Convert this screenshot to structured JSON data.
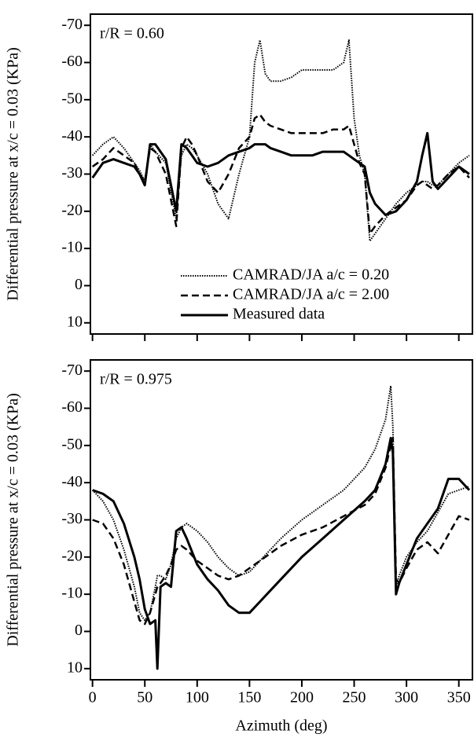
{
  "chart_data": [
    {
      "type": "line",
      "annotation": "r/R = 0.60",
      "ylabel": "Differential pressure at x/c = 0.03 (KPa)",
      "xlim": [
        -2,
        363
      ],
      "xticks": [
        0,
        50,
        100,
        150,
        200,
        250,
        300,
        350
      ],
      "ylim": [
        13,
        -73
      ],
      "yticks": [
        -70,
        -60,
        -50,
        -40,
        -30,
        -20,
        -10,
        0,
        10
      ],
      "legend": "bottom-center",
      "x": [
        0,
        10,
        20,
        30,
        40,
        45,
        50,
        55,
        60,
        70,
        80,
        85,
        90,
        95,
        100,
        110,
        120,
        130,
        140,
        150,
        155,
        160,
        165,
        170,
        180,
        190,
        200,
        210,
        220,
        230,
        240,
        245,
        250,
        255,
        260,
        265,
        270,
        280,
        290,
        300,
        310,
        315,
        320,
        325,
        330,
        340,
        350,
        360
      ],
      "series": [
        {
          "name": "CAMRAD/JA a/c = 0.20",
          "color": "#000000",
          "style": "dotted",
          "values": [
            -35,
            -38,
            -40,
            -37,
            -33,
            -31,
            -28,
            -38,
            -36,
            -33,
            -18,
            -35,
            -38,
            -37,
            -35,
            -30,
            -22,
            -18,
            -30,
            -40,
            -60,
            -66,
            -57,
            -55,
            -55,
            -56,
            -58,
            -58,
            -58,
            -58,
            -60,
            -66,
            -45,
            -35,
            -30,
            -12,
            -14,
            -18,
            -22,
            -25,
            -27,
            -28,
            -28,
            -27,
            -27,
            -30,
            -33,
            -35
          ]
        },
        {
          "name": "CAMRAD/JA a/c = 2.00",
          "color": "#000000",
          "style": "dashed",
          "values": [
            -32,
            -34,
            -37,
            -35,
            -33,
            -30,
            -28,
            -37,
            -36,
            -30,
            -16,
            -37,
            -40,
            -38,
            -35,
            -28,
            -25,
            -30,
            -37,
            -40,
            -45,
            -46,
            -44,
            -43,
            -42,
            -41,
            -41,
            -41,
            -41,
            -42,
            -42,
            -43,
            -38,
            -33,
            -30,
            -14,
            -16,
            -19,
            -21,
            -23,
            -27,
            -28,
            -27,
            -26,
            -27,
            -30,
            -32,
            -29
          ]
        },
        {
          "name": "Measured data",
          "color": "#000000",
          "style": "solid",
          "values": [
            -29,
            -33,
            -34,
            -33,
            -32,
            -30,
            -27,
            -38,
            -38,
            -34,
            -20,
            -38,
            -37,
            -35,
            -33,
            -32,
            -33,
            -35,
            -36,
            -37,
            -38,
            -38,
            -38,
            -37,
            -36,
            -35,
            -35,
            -35,
            -36,
            -36,
            -36,
            -35,
            -34,
            -33,
            -32,
            -25,
            -22,
            -19,
            -20,
            -23,
            -28,
            -35,
            -41,
            -28,
            -26,
            -29,
            -32,
            -30
          ]
        }
      ]
    },
    {
      "type": "line",
      "annotation": "r/R = 0.975",
      "ylabel": "Differential pressure at x/c = 0.03 (KPa)",
      "xlabel": "Azimuth (deg)",
      "xlim": [
        -2,
        363
      ],
      "xticks": [
        0,
        50,
        100,
        150,
        200,
        250,
        300,
        350
      ],
      "ylim": [
        13,
        -73
      ],
      "yticks": [
        -70,
        -60,
        -50,
        -40,
        -30,
        -20,
        -10,
        0,
        10
      ],
      "x": [
        0,
        10,
        20,
        30,
        40,
        45,
        50,
        55,
        60,
        62,
        65,
        70,
        75,
        80,
        85,
        90,
        100,
        110,
        120,
        130,
        140,
        150,
        160,
        180,
        200,
        220,
        240,
        260,
        270,
        280,
        285,
        287,
        290,
        293,
        300,
        310,
        320,
        330,
        340,
        350,
        360
      ],
      "series": [
        {
          "color": "#000000",
          "style": "dotted",
          "values": [
            -38,
            -35,
            -30,
            -22,
            -12,
            -5,
            -3,
            -5,
            -12,
            -15,
            -15,
            -14,
            -18,
            -25,
            -28,
            -29,
            -27,
            -24,
            -20,
            -17,
            -15,
            -16,
            -19,
            -25,
            -30,
            -34,
            -38,
            -44,
            -49,
            -57,
            -66,
            -55,
            -12,
            -15,
            -20,
            -24,
            -27,
            -32,
            -37,
            -38,
            -39
          ]
        },
        {
          "color": "#000000",
          "style": "dashed",
          "values": [
            -30,
            -29,
            -25,
            -18,
            -8,
            -3,
            -2,
            -5,
            -10,
            -12,
            -13,
            -15,
            -18,
            -22,
            -23,
            -22,
            -19,
            -17,
            -15,
            -14,
            -15,
            -17,
            -19,
            -23,
            -26,
            -28,
            -31,
            -34,
            -37,
            -44,
            -50,
            -52,
            -14,
            -13,
            -17,
            -22,
            -24,
            -21,
            -26,
            -31,
            -30
          ]
        },
        {
          "color": "#000000",
          "style": "solid",
          "values": [
            -38,
            -37,
            -35,
            -29,
            -20,
            -14,
            -6,
            -2,
            -3,
            10,
            -12,
            -13,
            -12,
            -27,
            -28,
            -25,
            -18,
            -14,
            -11,
            -7,
            -5,
            -5,
            -8,
            -14,
            -20,
            -25,
            -30,
            -35,
            -38,
            -45,
            -52,
            -48,
            -10,
            -13,
            -18,
            -25,
            -29,
            -33,
            -41,
            -41,
            -38
          ]
        }
      ]
    }
  ]
}
